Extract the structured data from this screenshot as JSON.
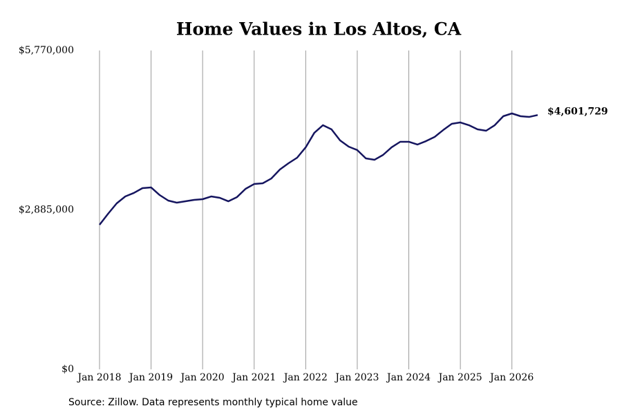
{
  "chart_data": {
    "type": "line",
    "title": "Home Values in Los Altos, CA",
    "source": "Source: Zillow. Data represents monthly typical home value",
    "x": [
      "2018-01",
      "2018-03",
      "2018-05",
      "2018-07",
      "2018-09",
      "2018-11",
      "2019-01",
      "2019-03",
      "2019-05",
      "2019-07",
      "2019-09",
      "2019-11",
      "2020-01",
      "2020-03",
      "2020-05",
      "2020-07",
      "2020-09",
      "2020-11",
      "2021-01",
      "2021-03",
      "2021-05",
      "2021-07",
      "2021-09",
      "2021-11",
      "2022-01",
      "2022-03",
      "2022-05",
      "2022-07",
      "2022-09",
      "2022-11",
      "2023-01",
      "2023-03",
      "2023-05",
      "2023-07",
      "2023-09",
      "2023-11",
      "2024-01",
      "2024-03",
      "2024-05",
      "2024-07",
      "2024-09",
      "2024-11",
      "2025-01",
      "2025-03",
      "2025-05",
      "2025-07",
      "2025-09",
      "2025-11",
      "2026-01",
      "2026-03",
      "2026-05",
      "2026-07"
    ],
    "series": [
      {
        "name": "Typical home value",
        "color": "#15155f",
        "values": [
          2616000,
          2816000,
          3004000,
          3129000,
          3192000,
          3279000,
          3292000,
          3154000,
          3054000,
          3016000,
          3041000,
          3066000,
          3079000,
          3129000,
          3104000,
          3041000,
          3117000,
          3267000,
          3354000,
          3367000,
          3454000,
          3617000,
          3730000,
          3830000,
          4018000,
          4280000,
          4418000,
          4343000,
          4143000,
          4030000,
          3968000,
          3817000,
          3792000,
          3880000,
          4018000,
          4118000,
          4118000,
          4068000,
          4130000,
          4205000,
          4330000,
          4443000,
          4468000,
          4418000,
          4343000,
          4318000,
          4418000,
          4581000,
          4631000,
          4581000,
          4568000,
          4601729
        ],
        "value_labels": [
          null,
          null,
          null,
          null,
          null,
          null,
          null,
          null,
          null,
          null,
          null,
          null,
          null,
          null,
          null,
          null,
          null,
          null,
          null,
          null,
          null,
          null,
          null,
          null,
          null,
          null,
          null,
          null,
          null,
          null,
          null,
          null,
          null,
          null,
          null,
          null,
          null,
          null,
          null,
          null,
          null,
          null,
          null,
          null,
          null,
          null,
          null,
          null,
          null,
          null,
          null,
          "$4,601,729"
        ]
      }
    ],
    "xlim": [
      "2018-01",
      "2026-07"
    ],
    "xticks": [
      {
        "value": "2018-01",
        "label": "Jan 2018"
      },
      {
        "value": "2019-01",
        "label": "Jan 2019"
      },
      {
        "value": "2020-01",
        "label": "Jan 2020"
      },
      {
        "value": "2021-01",
        "label": "Jan 2021"
      },
      {
        "value": "2022-01",
        "label": "Jan 2022"
      },
      {
        "value": "2023-01",
        "label": "Jan 2023"
      },
      {
        "value": "2024-01",
        "label": "Jan 2024"
      },
      {
        "value": "2025-01",
        "label": "Jan 2025"
      },
      {
        "value": "2026-01",
        "label": "Jan 2026"
      }
    ],
    "ylim": [
      0,
      5770000
    ],
    "yticks": [
      {
        "value": 0,
        "label": "$0"
      },
      {
        "value": 2885000,
        "label": "$2,885,000"
      },
      {
        "value": 5770000,
        "label": "$5,770,000"
      }
    ],
    "xgrid": true
  }
}
